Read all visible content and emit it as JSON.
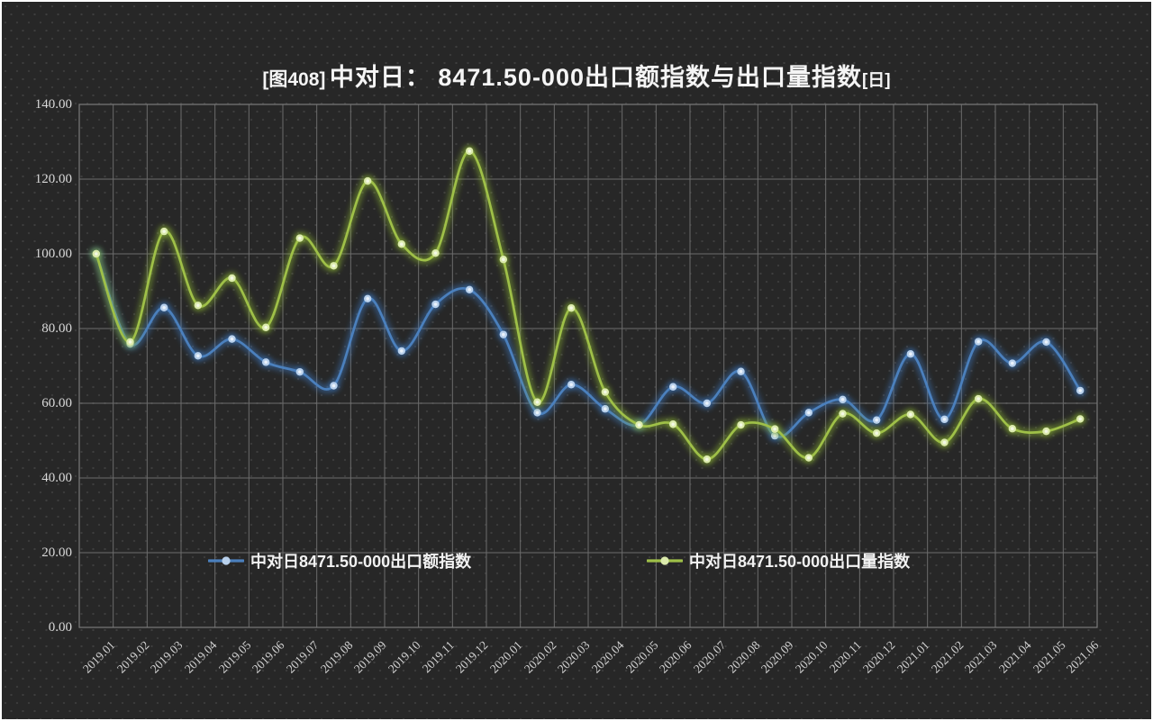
{
  "title": {
    "prefix": "[图408]",
    "main": "中对日： 8471.50-000出口额指数与出口量指数",
    "suffix": "[日]"
  },
  "chart_data": {
    "type": "line",
    "title": "[图408] 中对日： 8471.50-000出口额指数与出口量指数[日]",
    "x": [
      "2019.01",
      "2019.02",
      "2019.03",
      "2019.04",
      "2019.05",
      "2019.06",
      "2019.07",
      "2019.08",
      "2019.09",
      "2019.10",
      "2019.11",
      "2019.12",
      "2020.01",
      "2020.02",
      "2020.03",
      "2020.04",
      "2020.05",
      "2020.06",
      "2020.07",
      "2020.08",
      "2020.09",
      "2020.10",
      "2020.11",
      "2020.12",
      "2021.01",
      "2021.02",
      "2021.03",
      "2021.04",
      "2021.05",
      "2021.06"
    ],
    "series": [
      {
        "name": "中对日8471.50-000出口额指数",
        "color": "#4b80bd",
        "marker_color": "#b9d1ec",
        "marker_center": "#eaf2fb",
        "glow_color": "#3c78c0",
        "values": [
          100.0,
          75.9,
          85.6,
          72.7,
          77.2,
          71.0,
          68.4,
          64.7,
          88.0,
          74.0,
          86.5,
          90.4,
          78.4,
          57.5,
          65.0,
          58.5,
          54.2,
          64.4,
          60.0,
          68.5,
          51.3,
          57.5,
          61.0,
          55.5,
          73.2,
          55.7,
          76.5,
          70.7,
          76.4,
          63.4
        ]
      },
      {
        "name": "中对日8471.50-000出口量指数",
        "color": "#9fc048",
        "marker_color": "#dcebad",
        "marker_center": "#f3f8e4",
        "glow_color": "#8fb832",
        "values": [
          100.0,
          76.4,
          106.0,
          86.2,
          93.5,
          80.3,
          104.2,
          96.8,
          119.5,
          102.6,
          100.2,
          127.5,
          98.5,
          60.3,
          85.5,
          63.0,
          54.2,
          54.4,
          45.0,
          54.2,
          53.1,
          45.4,
          57.2,
          52.0,
          57.0,
          49.5,
          61.2,
          53.2,
          52.5,
          55.8
        ]
      }
    ],
    "ylim": [
      0,
      140
    ],
    "ytick_step": 20,
    "ytick_labels": [
      "0.00",
      "20.00",
      "40.00",
      "60.00",
      "80.00",
      "100.00",
      "120.00",
      "140.00"
    ],
    "grid": true,
    "legend_position": "bottom-inside"
  }
}
